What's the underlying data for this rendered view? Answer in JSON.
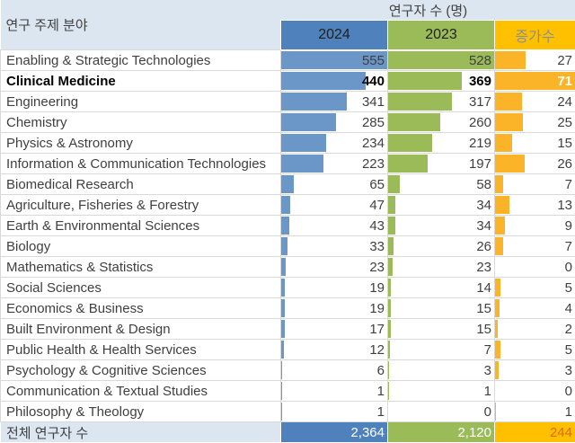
{
  "header": {
    "row_label": "연구 주제 분야",
    "group_label": "연구자 수 (명)",
    "columns": [
      "2024",
      "2023",
      "증가수"
    ]
  },
  "rows": [
    {
      "label": "Enabling & Strategic Technologies",
      "v2024": 555,
      "v2023": 528,
      "inc": 27,
      "bold": false
    },
    {
      "label": "Clinical Medicine",
      "v2024": 440,
      "v2023": 369,
      "inc": 71,
      "bold": true
    },
    {
      "label": "Engineering",
      "v2024": 341,
      "v2023": 317,
      "inc": 24,
      "bold": false
    },
    {
      "label": "Chemistry",
      "v2024": 285,
      "v2023": 260,
      "inc": 25,
      "bold": false
    },
    {
      "label": "Physics & Astronomy",
      "v2024": 234,
      "v2023": 219,
      "inc": 15,
      "bold": false
    },
    {
      "label": "Information & Communication Technologies",
      "v2024": 223,
      "v2023": 197,
      "inc": 26,
      "bold": false
    },
    {
      "label": "Biomedical Research",
      "v2024": 65,
      "v2023": 58,
      "inc": 7,
      "bold": false
    },
    {
      "label": "Agriculture, Fisheries & Forestry",
      "v2024": 47,
      "v2023": 34,
      "inc": 13,
      "bold": false
    },
    {
      "label": "Earth & Environmental Sciences",
      "v2024": 43,
      "v2023": 34,
      "inc": 9,
      "bold": false
    },
    {
      "label": "Biology",
      "v2024": 33,
      "v2023": 26,
      "inc": 7,
      "bold": false
    },
    {
      "label": "Mathematics & Statistics",
      "v2024": 23,
      "v2023": 23,
      "inc": 0,
      "bold": false
    },
    {
      "label": "Social Sciences",
      "v2024": 19,
      "v2023": 14,
      "inc": 5,
      "bold": false
    },
    {
      "label": "Economics & Business",
      "v2024": 19,
      "v2023": 15,
      "inc": 4,
      "bold": false
    },
    {
      "label": "Built Environment & Design",
      "v2024": 17,
      "v2023": 15,
      "inc": 2,
      "bold": false
    },
    {
      "label": "Public Health & Health Services",
      "v2024": 12,
      "v2023": 7,
      "inc": 5,
      "bold": false
    },
    {
      "label": "Psychology & Cognitive Sciences",
      "v2024": 6,
      "v2023": 3,
      "inc": 3,
      "bold": false
    },
    {
      "label": "Communication & Textual Studies",
      "v2024": 1,
      "v2023": 1,
      "inc": 0,
      "bold": false
    },
    {
      "label": "Philosophy & Theology",
      "v2024": 1,
      "v2023": 0,
      "inc": 1,
      "bold": false
    }
  ],
  "total": {
    "label": "전체 연구자 수",
    "v2024": "2,364",
    "v2023": "2,120",
    "inc": "244"
  },
  "bar_max": {
    "v2024": 555,
    "v2023": 528,
    "inc": 71
  },
  "colors": {
    "header_light_blue": "#dce6f1",
    "header_blue": "#4f81bd",
    "header_green": "#9bbb59",
    "header_gold": "#ffc000",
    "bar_blue": "#6b96c8",
    "bar_green": "#9bbb59",
    "bar_gold": "#fbb428",
    "gridline": "#d9d9d9",
    "total_inc_text": "#e26b0a"
  },
  "chart_data": {
    "type": "bar",
    "title": "연구자 수 (명)",
    "categories": [
      "Enabling & Strategic Technologies",
      "Clinical Medicine",
      "Engineering",
      "Chemistry",
      "Physics & Astronomy",
      "Information & Communication Technologies",
      "Biomedical Research",
      "Agriculture, Fisheries & Forestry",
      "Earth & Environmental Sciences",
      "Biology",
      "Mathematics & Statistics",
      "Social Sciences",
      "Economics & Business",
      "Built Environment & Design",
      "Public Health & Health Services",
      "Psychology & Cognitive Sciences",
      "Communication & Textual Studies",
      "Philosophy & Theology"
    ],
    "series": [
      {
        "name": "2024",
        "values": [
          555,
          440,
          341,
          285,
          234,
          223,
          65,
          47,
          43,
          33,
          23,
          19,
          19,
          17,
          12,
          6,
          1,
          1
        ]
      },
      {
        "name": "2023",
        "values": [
          528,
          369,
          317,
          260,
          219,
          197,
          58,
          34,
          34,
          26,
          23,
          14,
          15,
          15,
          7,
          3,
          1,
          0
        ]
      },
      {
        "name": "증가수",
        "values": [
          27,
          71,
          24,
          25,
          15,
          26,
          7,
          13,
          9,
          7,
          0,
          5,
          4,
          2,
          5,
          3,
          0,
          1
        ]
      }
    ],
    "totals": {
      "2024": 2364,
      "2023": 2120,
      "증가수": 244
    },
    "xlabel": "연구 주제 분야",
    "ylabel": "연구자 수 (명)",
    "bar_scale_max": {
      "2024": 555,
      "2023": 528,
      "증가수": 71
    },
    "highlighted_category": "Clinical Medicine",
    "legend_position": "top",
    "grid": true
  }
}
